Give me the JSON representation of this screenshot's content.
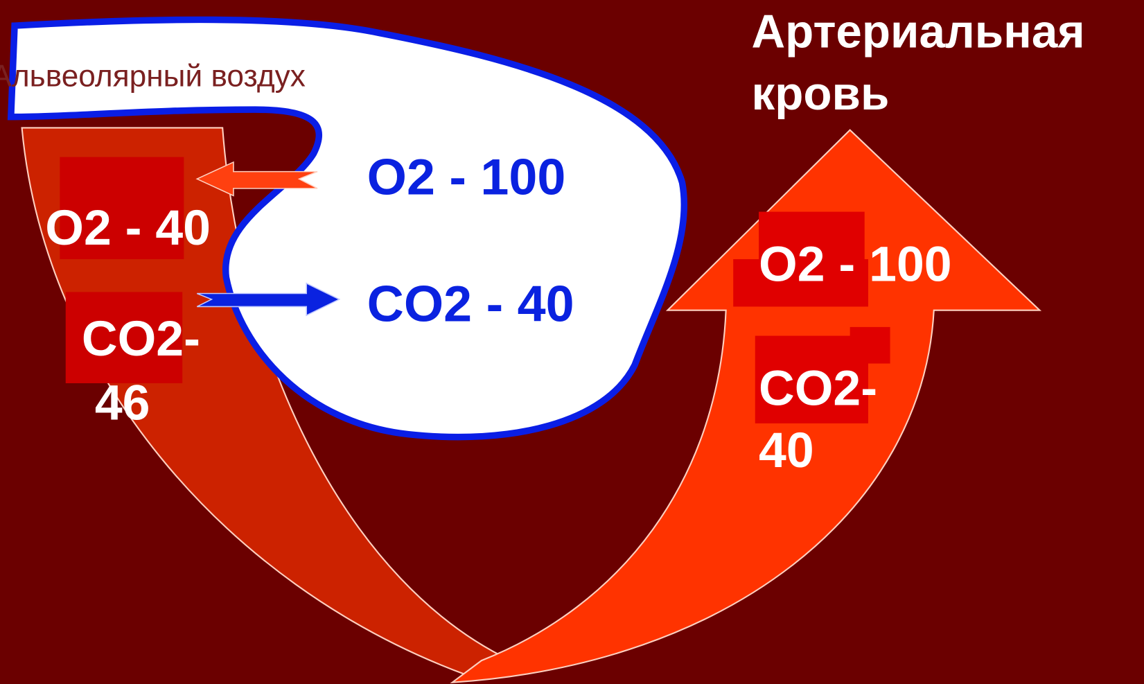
{
  "alveolar_air": {
    "label": "Альвеолярный воздух",
    "o2": "O2 - 100",
    "co2": "CO2 - 40"
  },
  "venous_blood": {
    "o2": "O2 - 40",
    "co2": [
      "CO2-",
      "46"
    ]
  },
  "arterial_blood": {
    "title": [
      "Артериальная",
      "кровь"
    ],
    "o2": "O2 - 100",
    "co2": [
      "CO2-",
      "40"
    ]
  }
}
